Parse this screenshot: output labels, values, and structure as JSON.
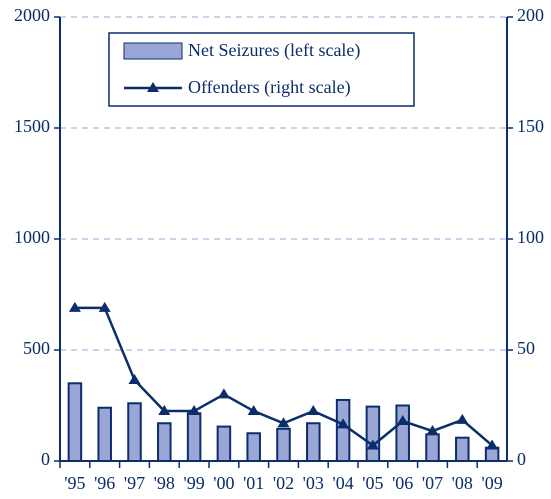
{
  "chart_data": {
    "type": "bar_line",
    "categories": [
      "'95",
      "'96",
      "'97",
      "'98",
      "'99",
      "'00",
      "'01",
      "'02",
      "'03",
      "'04",
      "'05",
      "'06",
      "'07",
      "'08",
      "'09"
    ],
    "series": [
      {
        "name": "Net Seizures (left scale)",
        "type": "bar",
        "color": "#9aa6d6",
        "values": [
          350,
          240,
          260,
          170,
          215,
          155,
          125,
          145,
          170,
          275,
          245,
          250,
          120,
          105,
          60
        ]
      },
      {
        "name": "Offenders (right scale)",
        "type": "line",
        "axis": "y2",
        "color": "#0b2d6b",
        "values": [
          69,
          69,
          36.5,
          22.5,
          22.5,
          30,
          22.5,
          17,
          22.5,
          16.5,
          7,
          18,
          13.5,
          18.5,
          7
        ]
      }
    ],
    "ylim": [
      0,
      2000
    ],
    "yticks": [
      0,
      500,
      1000,
      1500,
      2000
    ],
    "y2lim": [
      0,
      200
    ],
    "y2ticks": [
      0,
      50,
      100,
      150,
      200
    ],
    "grid": true,
    "legend": "upper center"
  }
}
